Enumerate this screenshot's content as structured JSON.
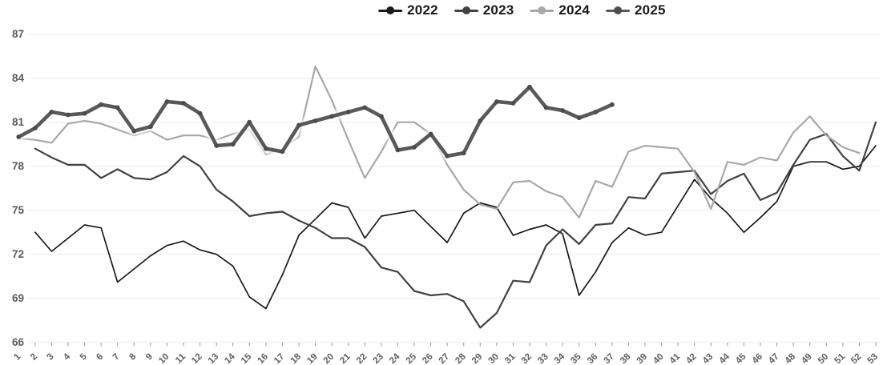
{
  "legend": {
    "items": [
      {
        "label": "2022"
      },
      {
        "label": "2023"
      },
      {
        "label": "2024"
      },
      {
        "label": "2025"
      }
    ],
    "position": "top-center"
  },
  "chart_data": {
    "type": "line",
    "x": [
      1,
      2,
      3,
      4,
      5,
      6,
      7,
      8,
      9,
      10,
      11,
      12,
      13,
      14,
      15,
      16,
      17,
      18,
      19,
      20,
      21,
      22,
      23,
      24,
      25,
      26,
      27,
      28,
      29,
      30,
      31,
      32,
      33,
      34,
      35,
      36,
      37,
      38,
      39,
      40,
      41,
      42,
      43,
      44,
      45,
      46,
      47,
      48,
      49,
      50,
      51,
      52,
      53
    ],
    "ylim": [
      66,
      87
    ],
    "yticks": [
      66,
      69,
      72,
      75,
      78,
      81,
      84,
      87
    ],
    "grid": "horizontal",
    "grid_color": "#ebebeb",
    "axis_label_color": "#5a5a5a",
    "background": "#ffffff",
    "legend_position": "top-center",
    "series": [
      {
        "name": "2022",
        "color": "#1a1a1a",
        "width": 1.7,
        "glow": false,
        "markers": false,
        "values": [
          null,
          73.5,
          72.2,
          73.1,
          74.0,
          73.8,
          70.1,
          71.0,
          71.9,
          72.6,
          72.9,
          72.3,
          72.0,
          71.2,
          69.1,
          68.3,
          70.6,
          73.3,
          74.4,
          75.5,
          75.2,
          73.1,
          74.6,
          74.8,
          75.0,
          73.9,
          72.8,
          74.8,
          75.5,
          75.2,
          73.3,
          73.7,
          74.0,
          73.4,
          69.2,
          70.8,
          72.8,
          73.8,
          73.3,
          73.5,
          75.3,
          77.1,
          75.8,
          74.8,
          73.5,
          74.5,
          75.6,
          78.0,
          78.3,
          78.3,
          77.8,
          78.0,
          79.4
        ]
      },
      {
        "name": "2023",
        "color": "#424242",
        "width": 2.2,
        "glow": false,
        "markers": false,
        "values": [
          null,
          79.2,
          78.6,
          78.1,
          78.1,
          77.2,
          77.8,
          77.2,
          77.1,
          77.6,
          78.7,
          78.0,
          76.4,
          75.6,
          74.6,
          74.8,
          74.9,
          74.3,
          73.8,
          73.1,
          73.1,
          72.5,
          71.1,
          70.8,
          69.5,
          69.2,
          69.3,
          68.8,
          67.0,
          68.0,
          70.2,
          70.1,
          72.6,
          73.7,
          72.7,
          74.0,
          74.1,
          75.9,
          75.8,
          77.5,
          77.6,
          77.7,
          76.1,
          77.0,
          77.5,
          75.7,
          76.2,
          78.1,
          79.8,
          80.2,
          78.7,
          77.7,
          81.0
        ]
      },
      {
        "name": "2024",
        "color": "#a8a8a8",
        "width": 2.2,
        "glow": false,
        "markers": false,
        "values": [
          79.9,
          79.8,
          79.6,
          80.9,
          81.1,
          80.9,
          80.5,
          80.1,
          80.4,
          79.8,
          80.1,
          80.1,
          79.8,
          80.2,
          80.5,
          78.8,
          79.2,
          80.0,
          84.8,
          82.5,
          79.8,
          77.2,
          79.0,
          81.0,
          81.0,
          80.2,
          78.1,
          76.4,
          75.4,
          75.1,
          76.9,
          77.0,
          76.3,
          75.9,
          74.5,
          77.0,
          76.6,
          79.0,
          79.4,
          79.3,
          79.2,
          77.6,
          75.1,
          78.3,
          78.1,
          78.6,
          78.4,
          80.3,
          81.4,
          80.1,
          79.3,
          78.9,
          null
        ]
      },
      {
        "name": "2025",
        "color": "#5a5a5a",
        "width": 4.6,
        "glow": true,
        "markers": true,
        "values": [
          80.0,
          80.6,
          81.7,
          81.5,
          81.6,
          82.2,
          82.0,
          80.4,
          80.7,
          82.4,
          82.3,
          81.6,
          79.4,
          79.5,
          81.0,
          79.2,
          79.0,
          80.8,
          81.1,
          81.4,
          81.7,
          82.0,
          81.4,
          79.1,
          79.3,
          80.2,
          78.7,
          78.9,
          81.1,
          82.4,
          82.3,
          83.4,
          82.0,
          81.8,
          81.3,
          81.7,
          82.2,
          null,
          null,
          null,
          null,
          null,
          null,
          null,
          null,
          null,
          null,
          null,
          null,
          null,
          null,
          null,
          null
        ]
      }
    ]
  }
}
